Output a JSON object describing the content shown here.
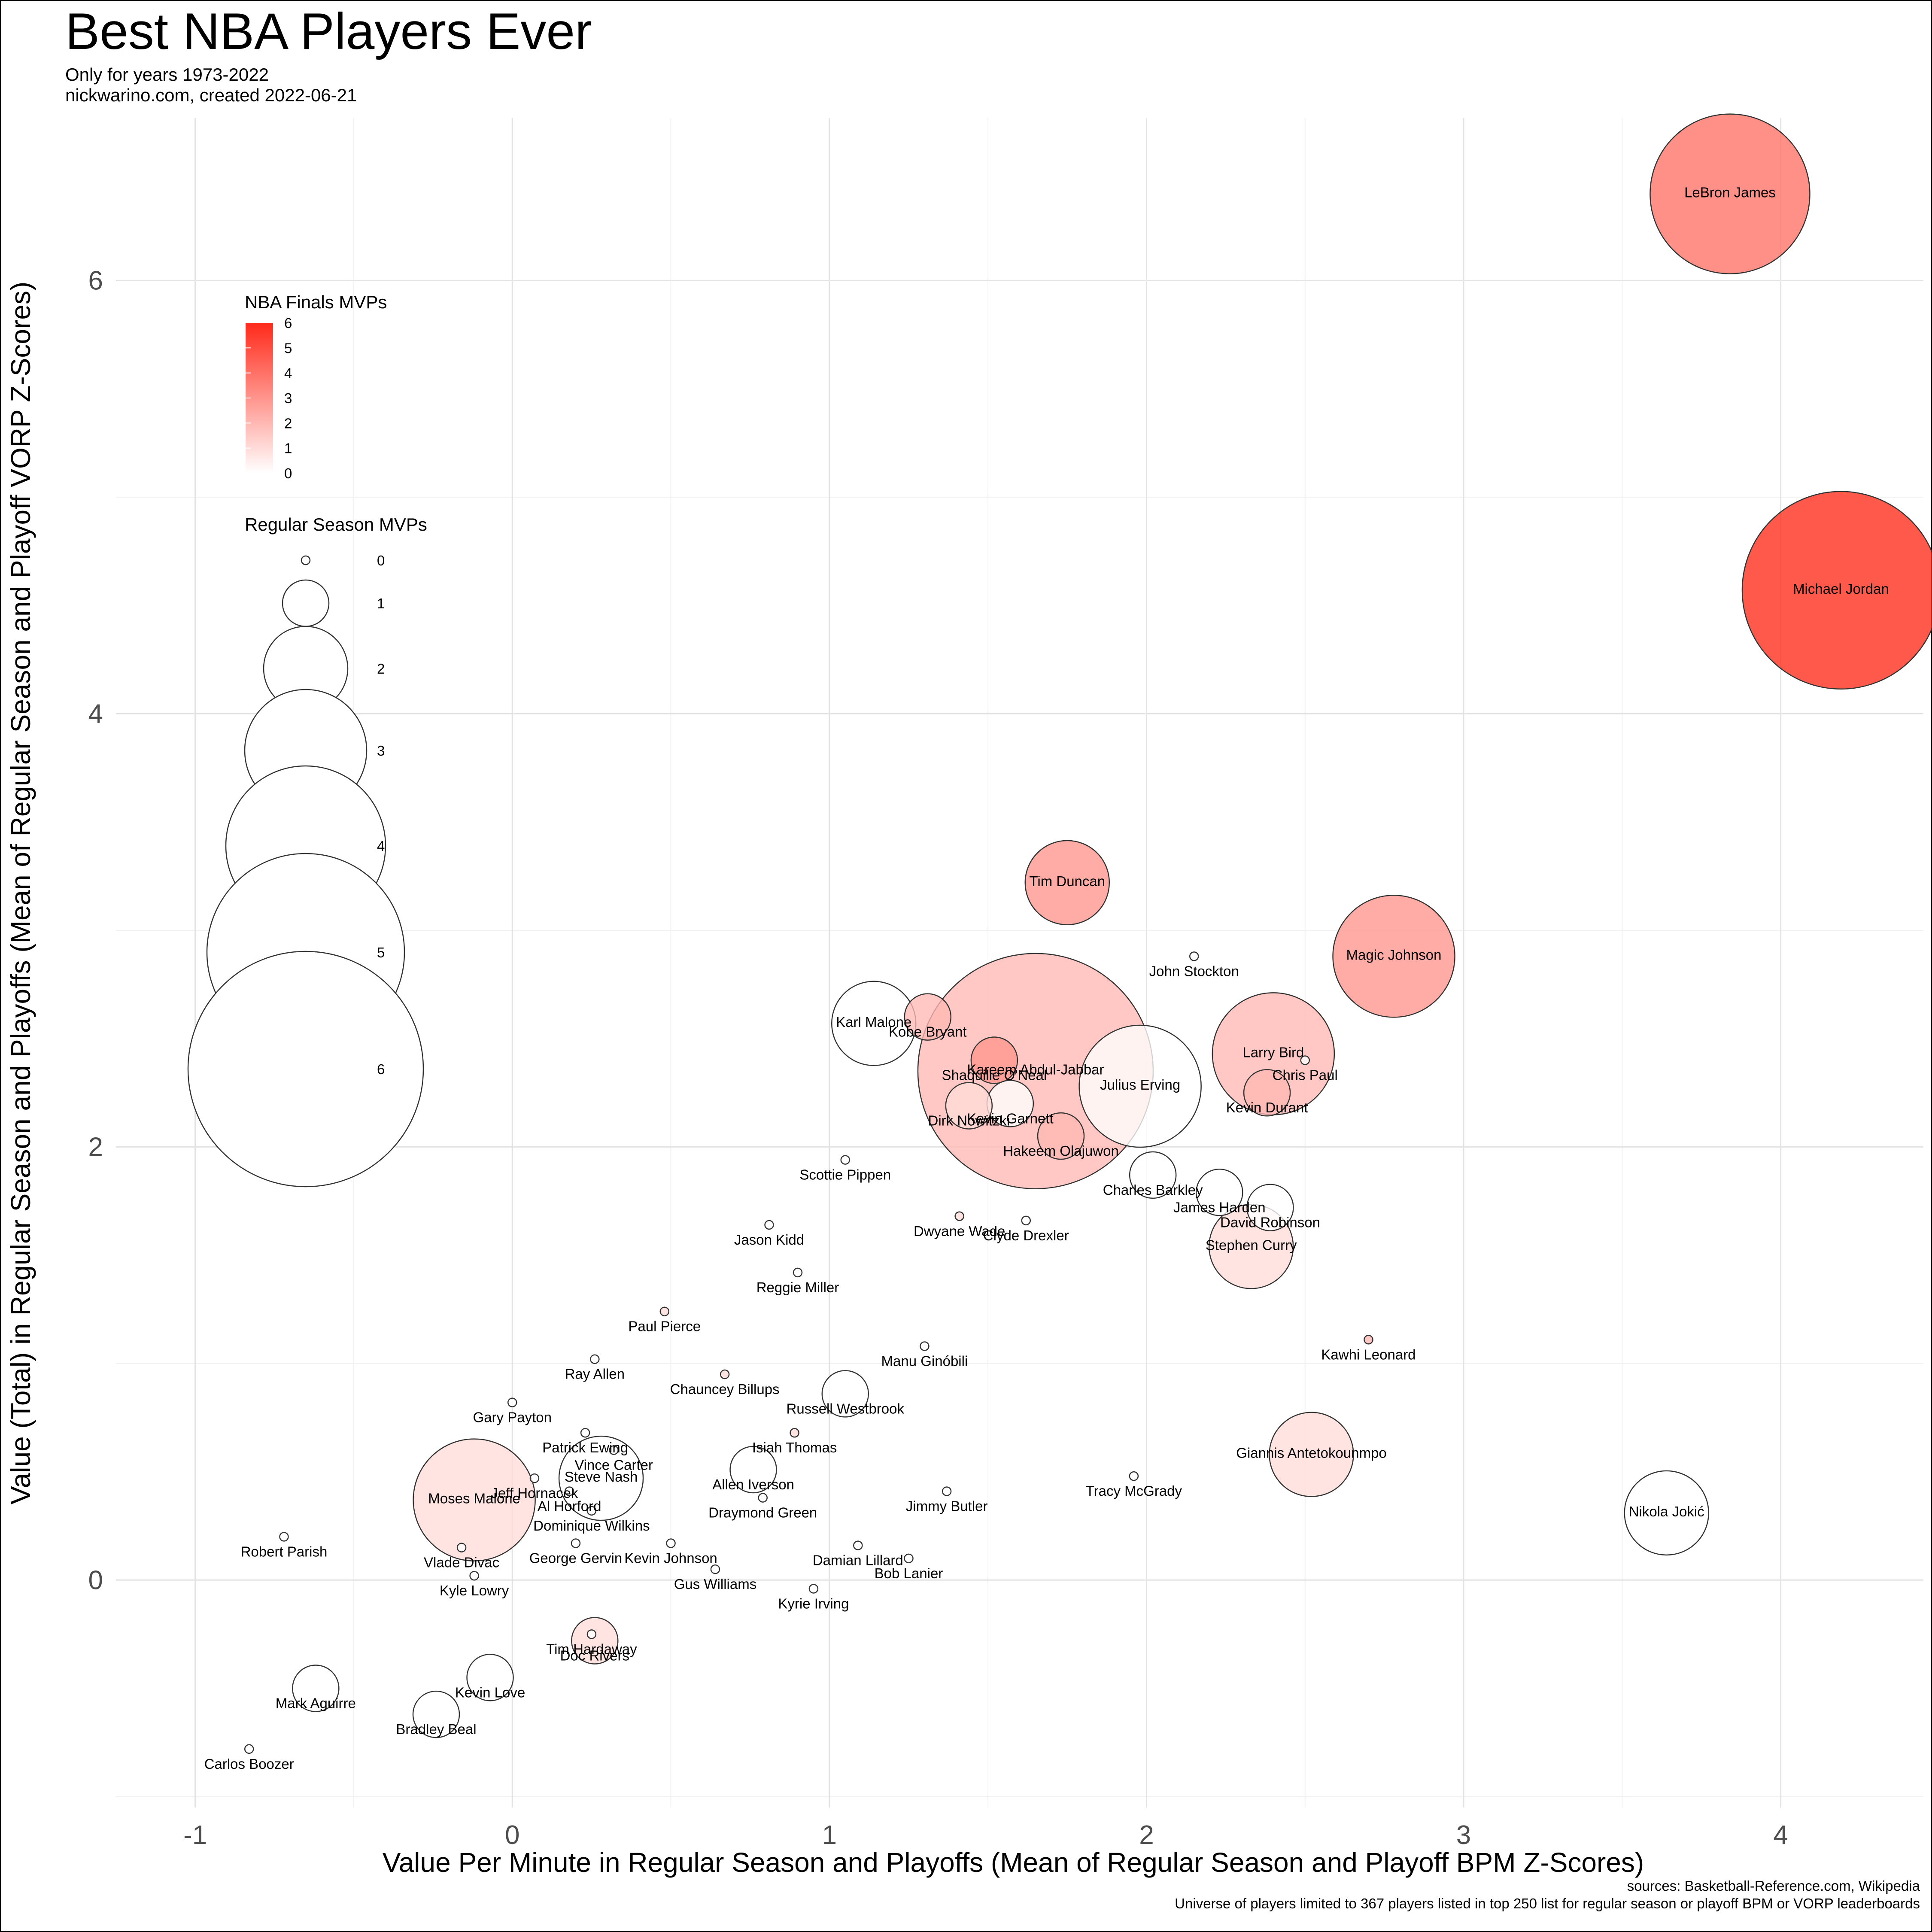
{
  "header": {
    "title": "Best NBA Players Ever",
    "subtitle_line1": "Only for years 1973-2022",
    "subtitle_line2": "nickwarino.com, created 2022-06-21"
  },
  "caption": {
    "line1": "sources: Basketball-Reference.com, Wikipedia",
    "line2": "Universe of players limited to 367 players listed in top 250 list for regular season or playoff BPM or VORP leaderboards"
  },
  "legend": {
    "finals_title": "NBA Finals MVPs",
    "finals_ticks": [
      "0",
      "1",
      "2",
      "3",
      "4",
      "5",
      "6"
    ],
    "regular_title": "Regular Season MVPs",
    "regular_sizes": [
      "0",
      "1",
      "2",
      "3",
      "4",
      "5",
      "6"
    ],
    "color_low": "#ffffff",
    "color_high": "#ff2a1a"
  },
  "chart_data": {
    "type": "scatter",
    "title": "Best NBA Players Ever",
    "xlabel": "Value Per Minute in Regular Season and Playoffs (Mean of Regular Season and Playoff BPM Z-Scores)",
    "ylabel": "Value (Total) in Regular Season and Playoffs (Mean of Regular Season and Playoff VORP Z-Scores)",
    "xlim": [
      -1.25,
      4.45
    ],
    "ylim": [
      -1.05,
      6.75
    ],
    "x_ticks": [
      -1,
      0,
      1,
      2,
      3,
      4
    ],
    "y_ticks": [
      0,
      2,
      4,
      6
    ],
    "grid": true,
    "size_variable": "Regular Season MVPs",
    "color_variable": "NBA Finals MVPs",
    "points": [
      {
        "name": "LeBron James",
        "x": 3.84,
        "y": 6.4,
        "mvp": 4,
        "fmvp": 4
      },
      {
        "name": "Michael Jordan",
        "x": 4.19,
        "y": 4.57,
        "mvp": 5,
        "fmvp": 6
      },
      {
        "name": "Tim Duncan",
        "x": 1.75,
        "y": 3.22,
        "mvp": 2,
        "fmvp": 3
      },
      {
        "name": "Magic Johnson",
        "x": 2.78,
        "y": 2.88,
        "mvp": 3,
        "fmvp": 3
      },
      {
        "name": "John Stockton",
        "x": 2.15,
        "y": 2.88,
        "mvp": 0,
        "fmvp": 0
      },
      {
        "name": "Kobe Bryant",
        "x": 1.31,
        "y": 2.6,
        "mvp": 1,
        "fmvp": 2
      },
      {
        "name": "Karl Malone",
        "x": 1.14,
        "y": 2.57,
        "mvp": 2,
        "fmvp": 0
      },
      {
        "name": "Larry Bird",
        "x": 2.4,
        "y": 2.43,
        "mvp": 3,
        "fmvp": 2
      },
      {
        "name": "Chris Paul",
        "x": 2.5,
        "y": 2.4,
        "mvp": 0,
        "fmvp": 0
      },
      {
        "name": "Shaquille O'Neal",
        "x": 1.52,
        "y": 2.4,
        "mvp": 1,
        "fmvp": 3
      },
      {
        "name": "Kareem Abdul-Jabbar",
        "x": 1.65,
        "y": 2.35,
        "mvp": 6,
        "fmvp": 2
      },
      {
        "name": "Julius Erving",
        "x": 1.98,
        "y": 2.28,
        "mvp": 3,
        "fmvp": 0
      },
      {
        "name": "Kevin Durant",
        "x": 2.38,
        "y": 2.25,
        "mvp": 1,
        "fmvp": 2
      },
      {
        "name": "Kevin Garnett",
        "x": 1.57,
        "y": 2.2,
        "mvp": 1,
        "fmvp": 0
      },
      {
        "name": "Dirk Nowitzki",
        "x": 1.44,
        "y": 2.19,
        "mvp": 1,
        "fmvp": 1
      },
      {
        "name": "Hakeem Olajuwon",
        "x": 1.73,
        "y": 2.05,
        "mvp": 1,
        "fmvp": 2
      },
      {
        "name": "Scottie Pippen",
        "x": 1.05,
        "y": 1.94,
        "mvp": 0,
        "fmvp": 0
      },
      {
        "name": "Charles Barkley",
        "x": 2.02,
        "y": 1.87,
        "mvp": 1,
        "fmvp": 0
      },
      {
        "name": "James Harden",
        "x": 2.23,
        "y": 1.79,
        "mvp": 1,
        "fmvp": 0
      },
      {
        "name": "David Robinson",
        "x": 2.39,
        "y": 1.72,
        "mvp": 1,
        "fmvp": 0
      },
      {
        "name": "Dwyane Wade",
        "x": 1.41,
        "y": 1.68,
        "mvp": 0,
        "fmvp": 1
      },
      {
        "name": "Clyde Drexler",
        "x": 1.62,
        "y": 1.66,
        "mvp": 0,
        "fmvp": 0
      },
      {
        "name": "Jason Kidd",
        "x": 0.81,
        "y": 1.64,
        "mvp": 0,
        "fmvp": 0
      },
      {
        "name": "Stephen Curry",
        "x": 2.33,
        "y": 1.54,
        "mvp": 2,
        "fmvp": 1
      },
      {
        "name": "Reggie Miller",
        "x": 0.9,
        "y": 1.42,
        "mvp": 0,
        "fmvp": 0
      },
      {
        "name": "Paul Pierce",
        "x": 0.48,
        "y": 1.24,
        "mvp": 0,
        "fmvp": 1
      },
      {
        "name": "Kawhi Leonard",
        "x": 2.7,
        "y": 1.11,
        "mvp": 0,
        "fmvp": 2
      },
      {
        "name": "Manu Ginóbili",
        "x": 1.3,
        "y": 1.08,
        "mvp": 0,
        "fmvp": 0
      },
      {
        "name": "Ray Allen",
        "x": 0.26,
        "y": 1.02,
        "mvp": 0,
        "fmvp": 0
      },
      {
        "name": "Chauncey Billups",
        "x": 0.67,
        "y": 0.95,
        "mvp": 0,
        "fmvp": 1
      },
      {
        "name": "Russell Westbrook",
        "x": 1.05,
        "y": 0.86,
        "mvp": 1,
        "fmvp": 0
      },
      {
        "name": "Gary Payton",
        "x": 0.0,
        "y": 0.82,
        "mvp": 0,
        "fmvp": 0
      },
      {
        "name": "Patrick Ewing",
        "x": 0.23,
        "y": 0.68,
        "mvp": 0,
        "fmvp": 0
      },
      {
        "name": "Isiah Thomas",
        "x": 0.89,
        "y": 0.68,
        "mvp": 0,
        "fmvp": 1
      },
      {
        "name": "Vince Carter",
        "x": 0.32,
        "y": 0.6,
        "mvp": 0,
        "fmvp": 0
      },
      {
        "name": "Giannis Antetokounmpo",
        "x": 2.52,
        "y": 0.58,
        "mvp": 2,
        "fmvp": 1
      },
      {
        "name": "Steve Nash",
        "x": 0.28,
        "y": 0.47,
        "mvp": 2,
        "fmvp": 0
      },
      {
        "name": "Allen Iverson",
        "x": 0.76,
        "y": 0.51,
        "mvp": 1,
        "fmvp": 0
      },
      {
        "name": "Tracy McGrady",
        "x": 1.96,
        "y": 0.48,
        "mvp": 0,
        "fmvp": 0
      },
      {
        "name": "Moses Malone",
        "x": -0.12,
        "y": 0.37,
        "mvp": 3,
        "fmvp": 1
      },
      {
        "name": "Jimmy Butler",
        "x": 1.37,
        "y": 0.41,
        "mvp": 0,
        "fmvp": 0
      },
      {
        "name": "Jeff Hornacek",
        "x": 0.07,
        "y": 0.47,
        "mvp": 0,
        "fmvp": 0
      },
      {
        "name": "Al Horford",
        "x": 0.18,
        "y": 0.41,
        "mvp": 0,
        "fmvp": 0
      },
      {
        "name": "Draymond Green",
        "x": 0.79,
        "y": 0.38,
        "mvp": 0,
        "fmvp": 0
      },
      {
        "name": "Nikola Jokić",
        "x": 3.64,
        "y": 0.31,
        "mvp": 2,
        "fmvp": 0
      },
      {
        "name": "Dominique Wilkins",
        "x": 0.25,
        "y": 0.32,
        "mvp": 0,
        "fmvp": 0
      },
      {
        "name": "Robert Parish",
        "x": -0.72,
        "y": 0.2,
        "mvp": 0,
        "fmvp": 0
      },
      {
        "name": "Kevin Johnson",
        "x": 0.5,
        "y": 0.17,
        "mvp": 0,
        "fmvp": 0
      },
      {
        "name": "Damian Lillard",
        "x": 1.09,
        "y": 0.16,
        "mvp": 0,
        "fmvp": 0
      },
      {
        "name": "George Gervin",
        "x": 0.2,
        "y": 0.17,
        "mvp": 0,
        "fmvp": 0
      },
      {
        "name": "Vlade Divac",
        "x": -0.16,
        "y": 0.15,
        "mvp": 0,
        "fmvp": 0
      },
      {
        "name": "Bob Lanier",
        "x": 1.25,
        "y": 0.1,
        "mvp": 0,
        "fmvp": 0
      },
      {
        "name": "Gus Williams",
        "x": 0.64,
        "y": 0.05,
        "mvp": 0,
        "fmvp": 0
      },
      {
        "name": "Kyle Lowry",
        "x": -0.12,
        "y": 0.02,
        "mvp": 0,
        "fmvp": 0
      },
      {
        "name": "Kyrie Irving",
        "x": 0.95,
        "y": -0.04,
        "mvp": 0,
        "fmvp": 0
      },
      {
        "name": "Tim Hardaway",
        "x": 0.25,
        "y": -0.25,
        "mvp": 0,
        "fmvp": 0
      },
      {
        "name": "Doc Rivers",
        "x": 0.26,
        "y": -0.28,
        "mvp": 1,
        "fmvp": 1
      },
      {
        "name": "Kevin Love",
        "x": -0.07,
        "y": -0.45,
        "mvp": 1,
        "fmvp": 0
      },
      {
        "name": "Carlos Boozer",
        "x": -0.83,
        "y": -0.78,
        "mvp": 0,
        "fmvp": 0
      },
      {
        "name": "Mark Aguirre",
        "x": -0.62,
        "y": -0.5,
        "mvp": 1,
        "fmvp": 0
      },
      {
        "name": "Bradley Beal",
        "x": -0.24,
        "y": -0.62,
        "mvp": 1,
        "fmvp": 0
      }
    ]
  }
}
